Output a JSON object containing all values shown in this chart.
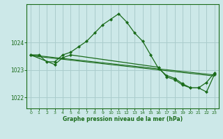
{
  "title": "Graphe pression niveau de la mer (hPa)",
  "bg_color": "#cce8e8",
  "grid_color": "#aacccc",
  "line_color": "#1a6b1a",
  "marker_color": "#1a6b1a",
  "xlim": [
    -0.5,
    23.5
  ],
  "ylim": [
    1021.6,
    1025.4
  ],
  "yticks": [
    1022,
    1023,
    1024
  ],
  "xticks": [
    0,
    1,
    2,
    3,
    4,
    5,
    6,
    7,
    8,
    9,
    10,
    11,
    12,
    13,
    14,
    15,
    16,
    17,
    18,
    19,
    20,
    21,
    22,
    23
  ],
  "series1_x": [
    0,
    1,
    2,
    3,
    4,
    5,
    6,
    7,
    8,
    9,
    10,
    11,
    12,
    13,
    14,
    15,
    16,
    17,
    18,
    19,
    20,
    21,
    22,
    23
  ],
  "series1_y": [
    1023.55,
    1023.55,
    1023.3,
    1023.3,
    1023.55,
    1023.65,
    1023.85,
    1024.05,
    1024.35,
    1024.65,
    1024.85,
    1025.05,
    1024.75,
    1024.35,
    1024.05,
    1023.55,
    1023.05,
    1022.8,
    1022.7,
    1022.5,
    1022.35,
    1022.35,
    1022.55,
    1022.9
  ],
  "series2_x": [
    0,
    3,
    4,
    5,
    16,
    17,
    18,
    19,
    20,
    21,
    22,
    23
  ],
  "series2_y": [
    1023.55,
    1023.2,
    1023.45,
    1023.55,
    1023.1,
    1022.75,
    1022.65,
    1022.45,
    1022.35,
    1022.35,
    1022.2,
    1022.85
  ],
  "line3_x": [
    0,
    23
  ],
  "line3_y": [
    1023.55,
    1022.82
  ],
  "line4_x": [
    0,
    23
  ],
  "line4_y": [
    1023.52,
    1022.78
  ]
}
